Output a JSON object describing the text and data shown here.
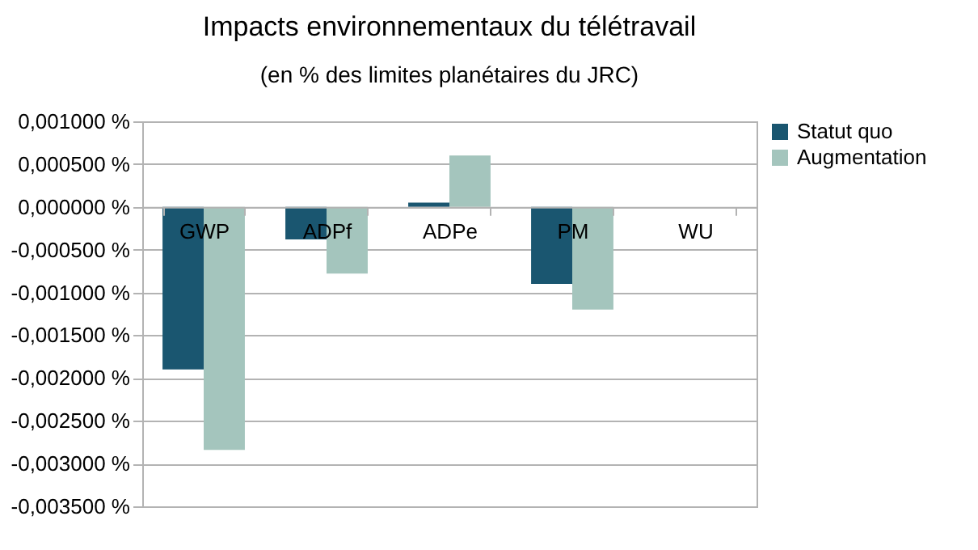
{
  "chart_data": {
    "type": "bar",
    "title": "Impacts environnementaux du télétravail",
    "subtitle": "(en % des limites planétaires du JRC)",
    "categories": [
      "GWP",
      "ADPf",
      "ADPe",
      "PM",
      "WU"
    ],
    "series": [
      {
        "name": "Statut quo",
        "color": "#1a5670",
        "values": [
          -0.0019,
          -0.00038,
          5e-05,
          -0.0009,
          null
        ]
      },
      {
        "name": "Augmentation",
        "color": "#a4c5bd",
        "values": [
          -0.00284,
          -0.00078,
          0.0006,
          -0.0012,
          null
        ]
      }
    ],
    "ylim": [
      -0.0035,
      0.001
    ],
    "yticks": [
      {
        "value": 0.001,
        "label": "0,001000 %"
      },
      {
        "value": 0.0005,
        "label": "0,000500 %"
      },
      {
        "value": 0,
        "label": "0,000000 %"
      },
      {
        "value": -0.0005,
        "label": "-0,000500 %"
      },
      {
        "value": -0.001,
        "label": "-0,001000 %"
      },
      {
        "value": -0.0015,
        "label": "-0,001500 %"
      },
      {
        "value": -0.002,
        "label": "-0,002000 %"
      },
      {
        "value": -0.0025,
        "label": "-0,002500 %"
      },
      {
        "value": -0.003,
        "label": "-0,003000 %"
      },
      {
        "value": -0.0035,
        "label": "-0,003500 %"
      }
    ],
    "grid": "y",
    "legend": "right"
  }
}
